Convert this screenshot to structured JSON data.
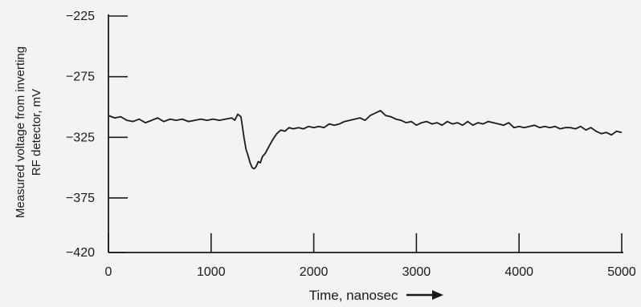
{
  "chart_data": {
    "type": "line",
    "title": "",
    "xlabel": "Time, nanosec",
    "ylabel_lines": [
      "Measured voltage from inverting",
      "RF detector, mV"
    ],
    "xlim": [
      0,
      5000
    ],
    "ylim": [
      -420,
      -225
    ],
    "x_ticks": [
      0,
      1000,
      2000,
      3000,
      4000,
      5000
    ],
    "y_ticks": [
      -225,
      -275,
      -325,
      -375,
      -420
    ],
    "y_tick_labels": [
      "−225",
      "−275",
      "−325",
      "−375",
      "−420"
    ],
    "grid": false,
    "legend": "none",
    "line_color": "#1a1a1a",
    "series": [
      {
        "x": [
          0,
          60,
          120,
          180,
          240,
          300,
          360,
          420,
          480,
          540,
          600,
          660,
          720,
          780,
          840,
          900,
          960,
          1020,
          1080,
          1140,
          1200,
          1230,
          1260,
          1290,
          1300,
          1320,
          1340,
          1360,
          1380,
          1400,
          1420,
          1440,
          1460,
          1480,
          1500,
          1530,
          1560,
          1600,
          1640,
          1680,
          1720,
          1760,
          1800,
          1850,
          1900,
          1950,
          2000,
          2050,
          2100,
          2150,
          2200,
          2250,
          2300,
          2350,
          2400,
          2450,
          2500,
          2550,
          2600,
          2650,
          2700,
          2750,
          2800,
          2850,
          2900,
          2950,
          3000,
          3050,
          3100,
          3150,
          3200,
          3250,
          3300,
          3350,
          3400,
          3450,
          3500,
          3550,
          3600,
          3650,
          3700,
          3750,
          3800,
          3850,
          3900,
          3950,
          4000,
          4050,
          4100,
          4150,
          4200,
          4250,
          4300,
          4350,
          4400,
          4450,
          4500,
          4550,
          4600,
          4650,
          4700,
          4750,
          4800,
          4850,
          4900,
          4950,
          5000
        ],
        "values": [
          -307,
          -309,
          -308,
          -311,
          -312,
          -310,
          -313,
          -311,
          -309,
          -312,
          -310,
          -311,
          -310,
          -312,
          -311,
          -310,
          -311,
          -310,
          -311,
          -310,
          -309,
          -311,
          -306,
          -308,
          -313,
          -325,
          -335,
          -340,
          -346,
          -350,
          -351,
          -349,
          -345,
          -346,
          -341,
          -338,
          -333,
          -327,
          -322,
          -319,
          -320,
          -317,
          -318,
          -317,
          -318,
          -316,
          -317,
          -316,
          -317,
          -314,
          -315,
          -314,
          -312,
          -311,
          -310,
          -309,
          -311,
          -307,
          -305,
          -303,
          -307,
          -308,
          -310,
          -311,
          -313,
          -312,
          -315,
          -313,
          -312,
          -314,
          -313,
          -315,
          -312,
          -314,
          -313,
          -315,
          -312,
          -315,
          -313,
          -314,
          -312,
          -313,
          -314,
          -315,
          -313,
          -317,
          -316,
          -317,
          -316,
          -315,
          -317,
          -316,
          -317,
          -316,
          -318,
          -317,
          -317,
          -318,
          -316,
          -319,
          -317,
          -320,
          -322,
          -321,
          -323,
          -320,
          -321
        ]
      }
    ]
  }
}
